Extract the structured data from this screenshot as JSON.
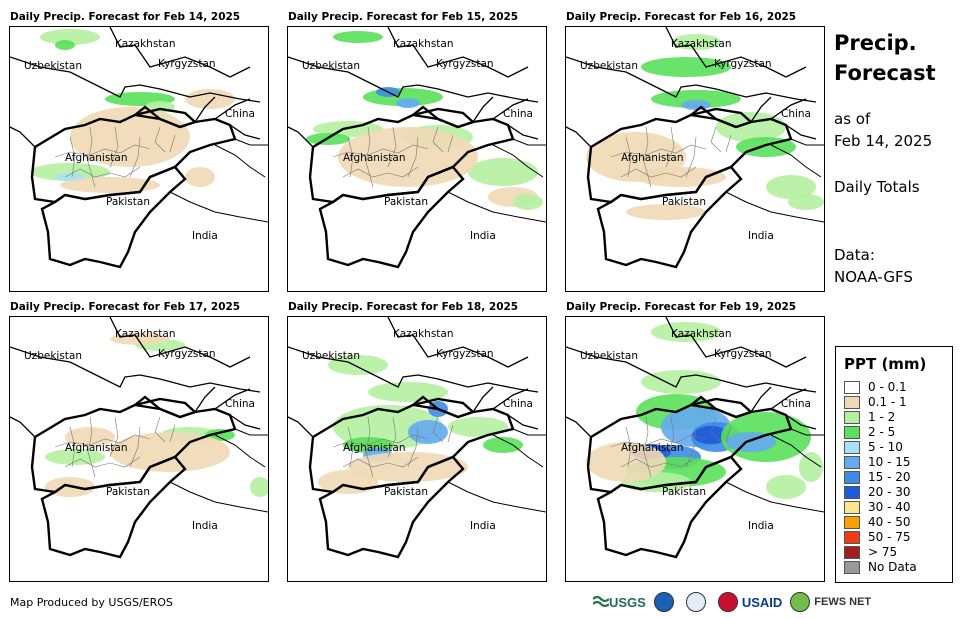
{
  "panels": [
    {
      "title": "Daily Precip. Forecast for Feb 14, 2025"
    },
    {
      "title": "Daily Precip. Forecast for Feb 15, 2025"
    },
    {
      "title": "Daily Precip. Forecast for Feb 16, 2025"
    },
    {
      "title": "Daily Precip. Forecast for Feb 17, 2025"
    },
    {
      "title": "Daily Precip. Forecast for Feb 18, 2025"
    },
    {
      "title": "Daily Precip. Forecast for Feb 19, 2025"
    }
  ],
  "map_labels": {
    "kazakhstan": "Kazakhstan",
    "uzbekistan": "Uzbekistan",
    "kyrgyzstan": "Kyrgyzstan",
    "china": "China",
    "afghanistan": "Afghanistan",
    "pakistan": "Pakistan",
    "india": "India"
  },
  "side": {
    "title_line1": "Precip.",
    "title_line2": "Forecast",
    "asof_line1": "as of",
    "asof_line2": "Feb 14, 2025",
    "daily_totals": "Daily Totals",
    "data_label": "Data:",
    "data_source": "NOAA-GFS"
  },
  "legend": {
    "title": "PPT (mm)",
    "items": [
      {
        "label": "0 - 0.1",
        "color": "#ffffff"
      },
      {
        "label": "0.1 - 1",
        "color": "#f0d9b5"
      },
      {
        "label": "1 - 2",
        "color": "#b4f0a0"
      },
      {
        "label": "2 - 5",
        "color": "#5ae05a"
      },
      {
        "label": "5 - 10",
        "color": "#a8e0f8"
      },
      {
        "label": "10 - 15",
        "color": "#64aaf0"
      },
      {
        "label": "15 - 20",
        "color": "#3c8ce6"
      },
      {
        "label": "20 - 30",
        "color": "#1e5adc"
      },
      {
        "label": "30 - 40",
        "color": "#fae68c"
      },
      {
        "label": "40 - 50",
        "color": "#faa000"
      },
      {
        "label": "50 - 75",
        "color": "#f03c14"
      },
      {
        "label": "> 75",
        "color": "#a01e1e"
      },
      {
        "label": "No Data",
        "color": "#999999"
      }
    ]
  },
  "credit": "Map Produced by USGS/EROS",
  "logos": {
    "usgs": "USGS",
    "usaid": "USAID",
    "fewsnet": "FEWS NET"
  },
  "colors": {
    "border": "#000000",
    "district": "#777777"
  }
}
